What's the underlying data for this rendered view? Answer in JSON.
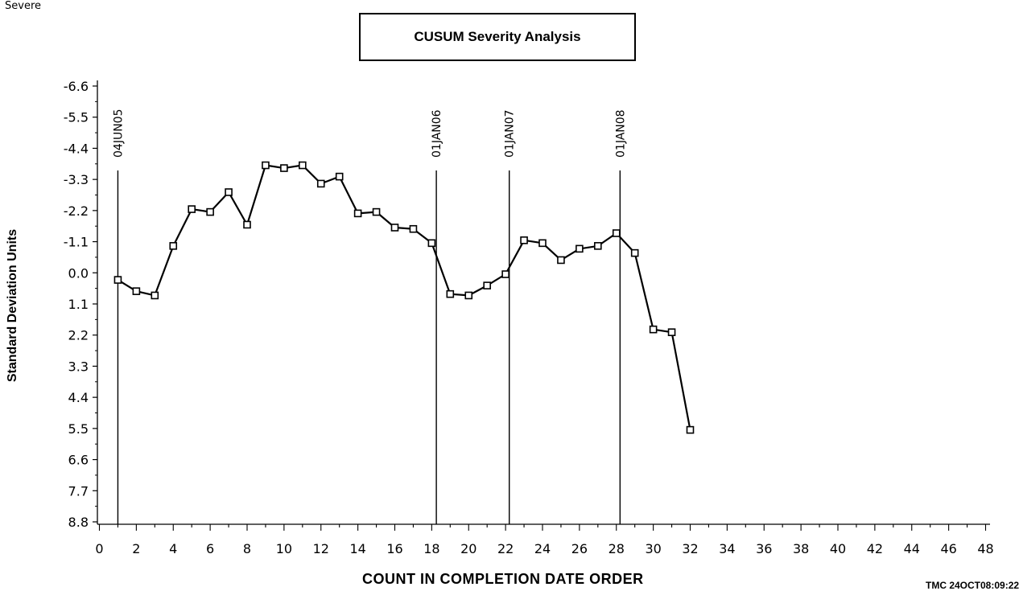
{
  "corner_note": "Severe",
  "chart_data": {
    "type": "line",
    "title": "CUSUM Severity Analysis",
    "xlabel": "COUNT IN COMPLETION DATE ORDER",
    "ylabel": "Standard Deviation Units",
    "stamp": "TMC 24OCT08:09:22",
    "xlim": [
      0,
      48
    ],
    "ylim_top": -6.6,
    "ylim_bottom": 8.8,
    "y_inverted": true,
    "xticks": [
      0,
      2,
      4,
      6,
      8,
      10,
      12,
      14,
      16,
      18,
      20,
      22,
      24,
      26,
      28,
      30,
      32,
      34,
      36,
      38,
      40,
      42,
      44,
      46,
      48
    ],
    "yticks": [
      -6.6,
      -5.5,
      -4.4,
      -3.3,
      -2.2,
      -1.1,
      0.0,
      1.1,
      2.2,
      3.3,
      4.4,
      5.5,
      6.6,
      7.7,
      8.8
    ],
    "ytick_labels": [
      "-6.6",
      "-5.5",
      "-4.4",
      "-3.3",
      "-2.2",
      "-1.1",
      "0.0",
      "1.1",
      "2.2",
      "3.3",
      "4.4",
      "5.5",
      "6.6",
      "7.7",
      "8.8"
    ],
    "reference_lines": [
      {
        "x": 1.0,
        "label": "04JUN05"
      },
      {
        "x": 18.25,
        "label": "01JAN06"
      },
      {
        "x": 22.2,
        "label": "01JAN07"
      },
      {
        "x": 28.2,
        "label": "01JAN08"
      }
    ],
    "series": [
      {
        "marker": "square",
        "color": "#000000",
        "x": [
          1,
          2,
          3,
          4,
          5,
          6,
          7,
          8,
          9,
          10,
          11,
          12,
          13,
          14,
          15,
          16,
          17,
          18,
          19,
          20,
          21,
          22,
          23,
          24,
          25,
          26,
          27,
          28,
          29,
          30,
          31,
          32
        ],
        "y": [
          0.25,
          0.65,
          0.8,
          -0.95,
          -2.25,
          -2.15,
          -2.85,
          -1.7,
          -3.8,
          -3.7,
          -3.8,
          -3.15,
          -3.4,
          -2.1,
          -2.15,
          -1.6,
          -1.55,
          -1.05,
          0.75,
          0.8,
          0.45,
          0.05,
          -1.15,
          -1.05,
          -0.45,
          -0.85,
          -0.95,
          -1.4,
          -0.7,
          2.0,
          2.1,
          5.55
        ]
      }
    ]
  }
}
